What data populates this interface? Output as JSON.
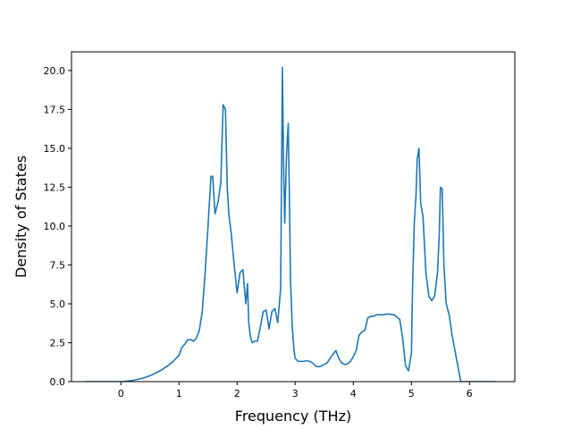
{
  "chart_data": {
    "type": "line",
    "title": "",
    "xlabel": "Frequency (THz)",
    "ylabel": "Density of States",
    "xlim": [
      -0.85,
      6.78
    ],
    "ylim": [
      0,
      21.2
    ],
    "x_ticks": [
      0,
      1,
      2,
      3,
      4,
      5,
      6
    ],
    "x_tick_labels": [
      "0",
      "1",
      "2",
      "3",
      "4",
      "5",
      "6"
    ],
    "y_ticks": [
      0.0,
      2.5,
      5.0,
      7.5,
      10.0,
      12.5,
      15.0,
      17.5,
      20.0
    ],
    "y_tick_labels": [
      "0.0",
      "2.5",
      "5.0",
      "7.5",
      "10.0",
      "12.5",
      "15.0",
      "17.5",
      "20.0"
    ],
    "grid": false,
    "legend": "none",
    "series": [
      {
        "color": "#1f77b4",
        "x": [
          -0.6,
          -0.3,
          0.0,
          0.1,
          0.2,
          0.3,
          0.4,
          0.5,
          0.6,
          0.7,
          0.8,
          0.9,
          1.0,
          1.05,
          1.1,
          1.15,
          1.2,
          1.25,
          1.3,
          1.35,
          1.4,
          1.45,
          1.5,
          1.55,
          1.58,
          1.62,
          1.67,
          1.72,
          1.76,
          1.8,
          1.83,
          1.86,
          1.9,
          1.95,
          2.0,
          2.05,
          2.1,
          2.15,
          2.18,
          2.2,
          2.23,
          2.26,
          2.3,
          2.35,
          2.4,
          2.45,
          2.5,
          2.55,
          2.6,
          2.65,
          2.7,
          2.75,
          2.78,
          2.8,
          2.82,
          2.85,
          2.88,
          2.9,
          2.92,
          2.95,
          2.98,
          3.0,
          3.05,
          3.1,
          3.15,
          3.2,
          3.25,
          3.3,
          3.35,
          3.4,
          3.45,
          3.5,
          3.55,
          3.6,
          3.65,
          3.7,
          3.75,
          3.8,
          3.85,
          3.9,
          3.95,
          4.0,
          4.05,
          4.1,
          4.15,
          4.2,
          4.25,
          4.3,
          4.35,
          4.4,
          4.5,
          4.6,
          4.7,
          4.8,
          4.85,
          4.9,
          4.95,
          5.0,
          5.02,
          5.05,
          5.08,
          5.1,
          5.13,
          5.16,
          5.2,
          5.25,
          5.3,
          5.35,
          5.4,
          5.45,
          5.48,
          5.5,
          5.53,
          5.56,
          5.6,
          5.65,
          5.7,
          5.75,
          5.8,
          5.85,
          5.9,
          6.0,
          6.2,
          6.45
        ],
        "y": [
          0.0,
          0.0,
          0.0,
          0.03,
          0.08,
          0.15,
          0.25,
          0.38,
          0.55,
          0.75,
          1.0,
          1.3,
          1.7,
          2.2,
          2.4,
          2.7,
          2.7,
          2.6,
          2.8,
          3.3,
          4.5,
          7.0,
          10.0,
          13.2,
          13.2,
          10.8,
          11.5,
          12.8,
          17.8,
          17.5,
          12.5,
          10.7,
          9.5,
          7.5,
          5.7,
          7.0,
          7.2,
          5.0,
          6.3,
          3.8,
          2.9,
          2.5,
          2.6,
          2.6,
          3.5,
          4.5,
          4.6,
          3.4,
          4.5,
          4.7,
          3.8,
          6.0,
          20.2,
          14.0,
          10.2,
          14.5,
          16.6,
          12.0,
          6.5,
          3.5,
          2.0,
          1.5,
          1.3,
          1.3,
          1.3,
          1.35,
          1.3,
          1.2,
          1.0,
          0.95,
          1.0,
          1.1,
          1.2,
          1.5,
          1.75,
          2.0,
          1.5,
          1.2,
          1.1,
          1.15,
          1.3,
          1.6,
          2.0,
          3.0,
          3.2,
          3.3,
          4.1,
          4.2,
          4.2,
          4.3,
          4.3,
          4.35,
          4.3,
          4.0,
          2.8,
          1.0,
          0.7,
          1.8,
          6.0,
          10.2,
          12.0,
          14.3,
          15.0,
          11.5,
          10.6,
          7.0,
          5.5,
          5.2,
          5.5,
          7.0,
          9.5,
          12.5,
          12.4,
          7.5,
          5.0,
          4.3,
          3.0,
          2.0,
          1.0,
          0.0,
          0.0,
          0.0,
          0.0,
          0.0
        ]
      }
    ]
  }
}
